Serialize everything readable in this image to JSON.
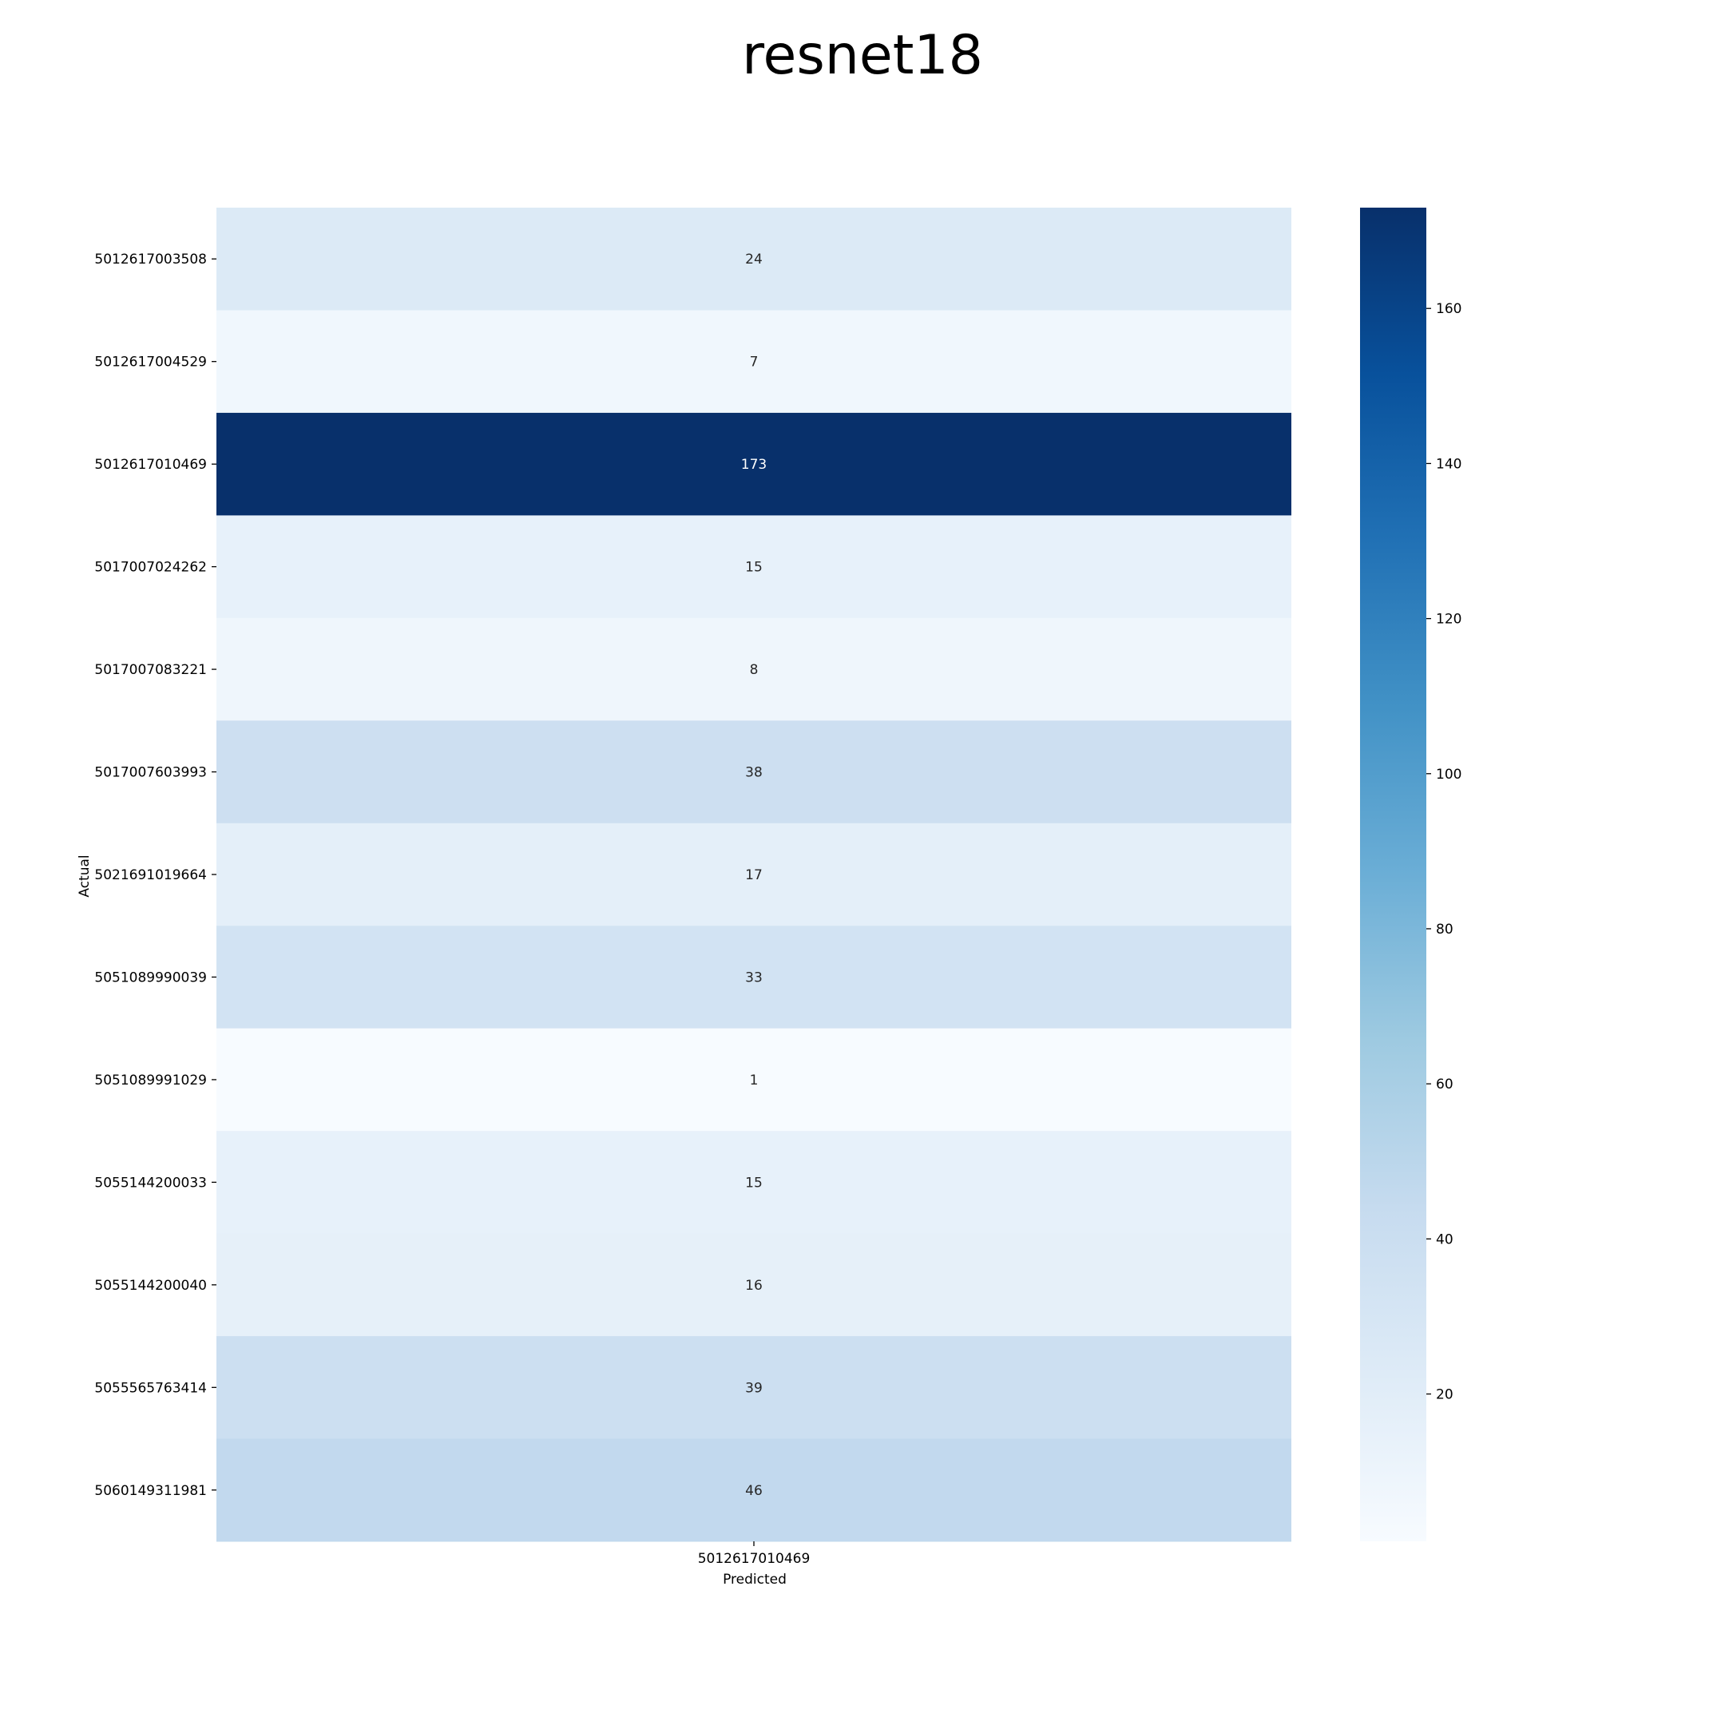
{
  "chart_data": {
    "type": "heatmap",
    "title": "resnet18",
    "xlabel": "Predicted",
    "ylabel": "Actual",
    "x_categories": [
      "5012617010469"
    ],
    "y_categories": [
      "5012617003508",
      "5012617004529",
      "5012617010469",
      "5017007024262",
      "5017007083221",
      "5017007603993",
      "5021691019664",
      "5051089990039",
      "5051089991029",
      "5055144200033",
      "5055144200040",
      "5055565763414",
      "5060149311981"
    ],
    "values": [
      [
        24
      ],
      [
        7
      ],
      [
        173
      ],
      [
        15
      ],
      [
        8
      ],
      [
        38
      ],
      [
        17
      ],
      [
        33
      ],
      [
        1
      ],
      [
        15
      ],
      [
        16
      ],
      [
        39
      ],
      [
        46
      ]
    ],
    "colormap": "Blues",
    "colorbar": {
      "range": [
        1,
        173
      ],
      "ticks": [
        20,
        40,
        60,
        80,
        100,
        120,
        140,
        160
      ]
    },
    "annotations": true
  }
}
